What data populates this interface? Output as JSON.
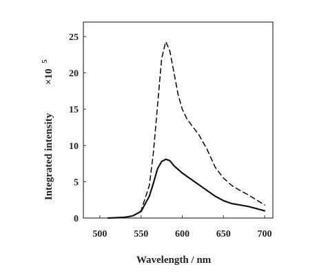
{
  "chart_data": {
    "type": "line",
    "title": "",
    "xlabel": "Wavelength / nm",
    "ylabel": "Integrated intensity",
    "y_multiplier": {
      "base": "×10",
      "exponent": "5"
    },
    "xlim": [
      480,
      710
    ],
    "ylim": [
      0,
      27
    ],
    "x_ticks": [
      500,
      550,
      600,
      650,
      700
    ],
    "y_ticks": [
      0,
      5,
      10,
      15,
      20,
      25
    ],
    "grid": false,
    "legend": "none",
    "series": [
      {
        "style": "dashed",
        "color": "#111111",
        "x": [
          510,
          520,
          530,
          540,
          550,
          560,
          565,
          570,
          575,
          580,
          585,
          590,
          595,
          600,
          605,
          610,
          620,
          630,
          640,
          650,
          660,
          670,
          680,
          690,
          700
        ],
        "y": [
          0.0,
          0.05,
          0.1,
          0.3,
          1.0,
          4.5,
          9.0,
          15.5,
          22.0,
          24.3,
          23.0,
          20.0,
          17.0,
          15.0,
          13.8,
          13.0,
          11.5,
          9.5,
          7.0,
          5.5,
          4.5,
          3.8,
          3.2,
          2.5,
          1.8
        ]
      },
      {
        "style": "solid",
        "color": "#111111",
        "x": [
          510,
          520,
          530,
          540,
          550,
          560,
          565,
          570,
          575,
          580,
          585,
          590,
          600,
          610,
          620,
          630,
          640,
          650,
          660,
          670,
          680,
          690,
          700
        ],
        "y": [
          0.0,
          0.05,
          0.1,
          0.3,
          0.9,
          3.0,
          4.8,
          6.8,
          7.8,
          8.1,
          7.9,
          7.2,
          6.2,
          5.4,
          4.6,
          3.8,
          3.0,
          2.4,
          2.0,
          1.8,
          1.6,
          1.3,
          1.0
        ]
      }
    ]
  }
}
